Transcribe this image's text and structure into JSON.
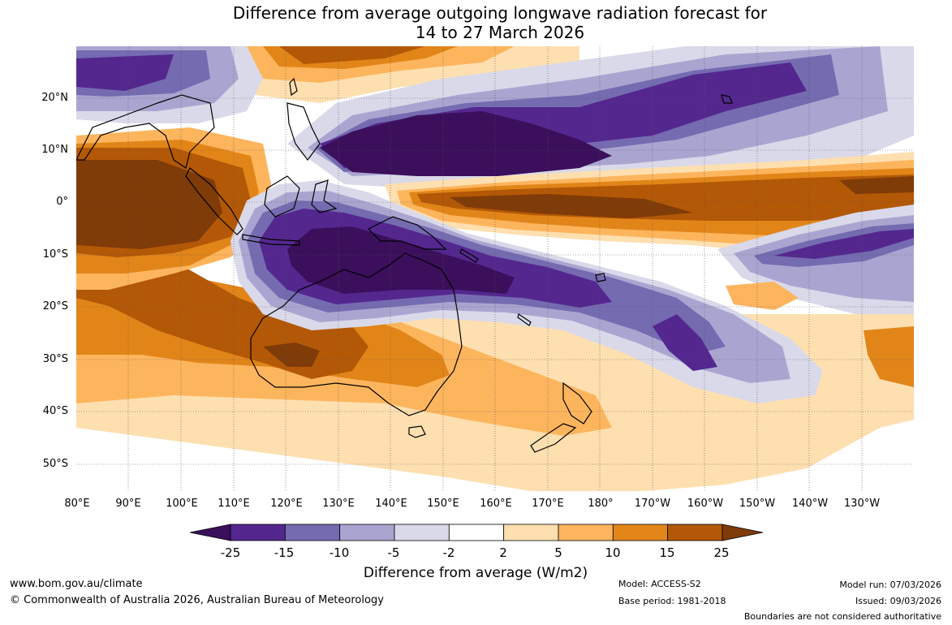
{
  "title": {
    "line1": "Difference from average outgoing longwave radiation forecast for",
    "line2": "14 to 27 March 2026"
  },
  "map": {
    "lat_labels": [
      "20°N",
      "10°N",
      "0°",
      "10°S",
      "20°S",
      "30°S",
      "40°S",
      "50°S"
    ],
    "lon_labels": [
      "80°E",
      "90°E",
      "100°E",
      "110°E",
      "120°E",
      "130°E",
      "140°E",
      "150°E",
      "160°E",
      "170°E",
      "180°",
      "170°W",
      "160°W",
      "150°W",
      "140°W",
      "130°W"
    ]
  },
  "colorbar": {
    "tick_labels": [
      "-25",
      "-15",
      "-10",
      "-5",
      "-2",
      "2",
      "5",
      "10",
      "15",
      "25"
    ],
    "colors": [
      "#3b0f5c",
      "#54278f",
      "#756bb1",
      "#aaa5d0",
      "#d9d9ea",
      "#ffffff",
      "#fedfb0",
      "#fdb55d",
      "#e28519",
      "#b35806",
      "#7f3b08"
    ],
    "title": "Difference from average (W/m2)"
  },
  "footer": {
    "website": "www.bom.gov.au/climate",
    "copyright": "© Commonwealth of Australia 2026, Australian Bureau of Meteorology",
    "model": "Model: ACCESS-S2",
    "base_period": "Base period: 1981-2018",
    "model_run": "Model run: 07/03/2026",
    "issued": "Issued: 09/03/2026",
    "boundaries": "Boundaries are not considered authoritative"
  }
}
